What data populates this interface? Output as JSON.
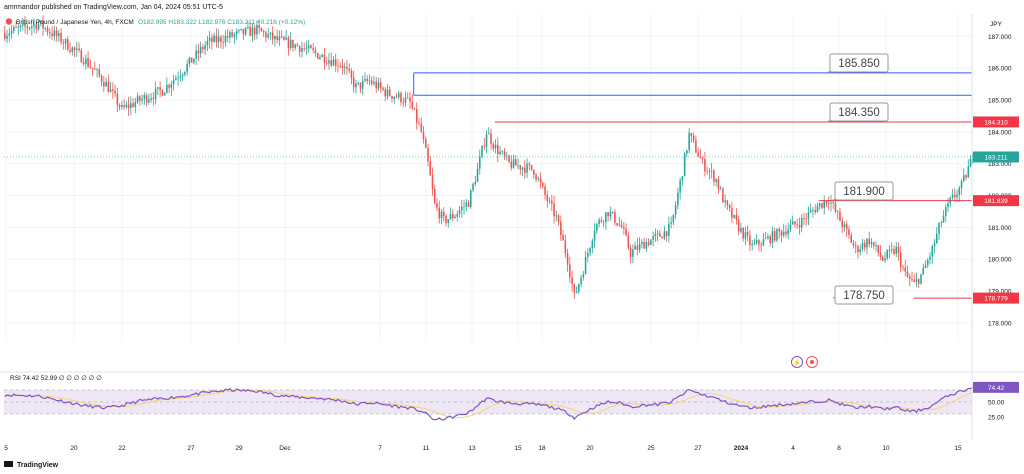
{
  "header": {
    "publisher": "amrmandor published on TradingView.com, Jan 04, 2024 05:51 UTC-5",
    "symbol": "British Pound / Japanese Yen, 4h, FXCM",
    "ohlc": "O182.995 H183.322 L182.976 C183.211 +0.216 (+0.12%)"
  },
  "footer": {
    "brand": "TradingView"
  },
  "colors": {
    "up": "#26a69a",
    "down": "#ef5350",
    "blue_line": "#2962ff",
    "red_line": "#f23645",
    "rsi": "#7e57c2",
    "rsi_band": "#ede7f6",
    "rsi_ma": "#f9d56e"
  },
  "chart_data": [
    {
      "type": "candlestick",
      "title": "British Pound / Japanese Yen, 4h, FXCM",
      "currency": "JPY",
      "ylim": [
        177.4,
        187.7
      ],
      "y_ticks": [
        178.0,
        179.0,
        180.0,
        181.0,
        182.0,
        183.0,
        184.0,
        185.0,
        186.0,
        187.0
      ],
      "x_ticks": [
        "5",
        "20",
        "22",
        "27",
        "29",
        "Dec",
        "7",
        "11",
        "13",
        "15",
        "18",
        "20",
        "25",
        "27",
        "2024",
        "4",
        "8",
        "10",
        "15"
      ],
      "last_price": 183.211,
      "waypoints": [
        [
          0,
          187.1
        ],
        [
          15,
          187.4
        ],
        [
          25,
          186.9
        ],
        [
          35,
          186.3
        ],
        [
          45,
          185.5
        ],
        [
          52,
          184.7
        ],
        [
          60,
          185.0
        ],
        [
          70,
          185.3
        ],
        [
          80,
          186.0
        ],
        [
          90,
          186.8
        ],
        [
          100,
          187.0
        ],
        [
          112,
          187.2
        ],
        [
          120,
          186.9
        ],
        [
          130,
          186.7
        ],
        [
          140,
          186.4
        ],
        [
          150,
          186.1
        ],
        [
          156,
          185.4
        ],
        [
          162,
          185.6
        ],
        [
          170,
          185.2
        ],
        [
          175,
          185.1
        ],
        [
          180,
          184.9
        ],
        [
          185,
          184.0
        ],
        [
          188,
          183.0
        ],
        [
          191,
          181.7
        ],
        [
          195,
          181.2
        ],
        [
          200,
          181.4
        ],
        [
          206,
          181.8
        ],
        [
          210,
          182.8
        ],
        [
          214,
          184.0
        ],
        [
          218,
          183.5
        ],
        [
          224,
          183.0
        ],
        [
          230,
          182.9
        ],
        [
          235,
          182.8
        ],
        [
          240,
          182.0
        ],
        [
          245,
          181.3
        ],
        [
          250,
          180.0
        ],
        [
          253,
          178.8
        ],
        [
          257,
          179.7
        ],
        [
          262,
          181.0
        ],
        [
          268,
          181.5
        ],
        [
          274,
          181.0
        ],
        [
          278,
          180.2
        ],
        [
          284,
          180.5
        ],
        [
          290,
          180.7
        ],
        [
          296,
          181.0
        ],
        [
          300,
          182.4
        ],
        [
          304,
          183.9
        ],
        [
          310,
          183.0
        ],
        [
          316,
          182.5
        ],
        [
          320,
          181.7
        ],
        [
          326,
          181.0
        ],
        [
          332,
          180.4
        ],
        [
          338,
          180.6
        ],
        [
          346,
          180.9
        ],
        [
          354,
          181.2
        ],
        [
          360,
          181.6
        ],
        [
          366,
          181.9
        ],
        [
          372,
          181.1
        ],
        [
          378,
          180.3
        ],
        [
          384,
          180.6
        ],
        [
          390,
          180.0
        ],
        [
          396,
          180.3
        ],
        [
          400,
          179.5
        ],
        [
          404,
          179.2
        ],
        [
          408,
          179.6
        ],
        [
          412,
          180.3
        ],
        [
          416,
          181.2
        ],
        [
          420,
          181.8
        ],
        [
          425,
          182.3
        ],
        [
          430,
          183.2
        ]
      ],
      "candles_count": 430,
      "levels": [
        {
          "price": 185.85,
          "label": "185.850",
          "color": "blue",
          "from_bar": 182
        },
        {
          "price": 185.15,
          "color": "blue",
          "from_bar": 182
        },
        {
          "price": 184.31,
          "label": "184.350",
          "tag": "184.310",
          "color": "red",
          "from_bar": 218
        },
        {
          "price": 181.839,
          "label": "181.900",
          "tag": "181.839",
          "color": "red",
          "from_bar": 362
        },
        {
          "price": 178.779,
          "label": "178.750",
          "tag": "178.779",
          "color": "red",
          "from_bar": 404
        }
      ]
    },
    {
      "type": "line",
      "title": "RSI",
      "legend": "RSI 74.42 52.99 ∅ ∅ ∅ ∅ ∅ ∅",
      "ylim": [
        0,
        100
      ],
      "y_ticks": [
        25.0,
        50.0,
        75.0
      ],
      "band": [
        30,
        70
      ],
      "last_value": 74.42,
      "ma_value": 52.99,
      "waypoints": [
        [
          0,
          62
        ],
        [
          15,
          60
        ],
        [
          25,
          52
        ],
        [
          35,
          44
        ],
        [
          45,
          40
        ],
        [
          52,
          44
        ],
        [
          60,
          52
        ],
        [
          70,
          56
        ],
        [
          80,
          60
        ],
        [
          90,
          66
        ],
        [
          100,
          70
        ],
        [
          112,
          68
        ],
        [
          120,
          62
        ],
        [
          130,
          58
        ],
        [
          140,
          56
        ],
        [
          150,
          52
        ],
        [
          156,
          46
        ],
        [
          162,
          49
        ],
        [
          170,
          45
        ],
        [
          175,
          42
        ],
        [
          180,
          40
        ],
        [
          185,
          35
        ],
        [
          188,
          28
        ],
        [
          191,
          20
        ],
        [
          195,
          22
        ],
        [
          200,
          26
        ],
        [
          206,
          32
        ],
        [
          210,
          44
        ],
        [
          214,
          56
        ],
        [
          218,
          52
        ],
        [
          224,
          48
        ],
        [
          230,
          47
        ],
        [
          235,
          46
        ],
        [
          240,
          44
        ],
        [
          245,
          39
        ],
        [
          250,
          32
        ],
        [
          253,
          24
        ],
        [
          257,
          32
        ],
        [
          262,
          42
        ],
        [
          268,
          50
        ],
        [
          274,
          48
        ],
        [
          278,
          42
        ],
        [
          284,
          45
        ],
        [
          290,
          46
        ],
        [
          296,
          50
        ],
        [
          300,
          60
        ],
        [
          304,
          70
        ],
        [
          310,
          62
        ],
        [
          316,
          56
        ],
        [
          320,
          50
        ],
        [
          326,
          44
        ],
        [
          332,
          40
        ],
        [
          338,
          43
        ],
        [
          346,
          46
        ],
        [
          354,
          48
        ],
        [
          360,
          51
        ],
        [
          366,
          53
        ],
        [
          372,
          46
        ],
        [
          378,
          40
        ],
        [
          384,
          43
        ],
        [
          390,
          38
        ],
        [
          396,
          41
        ],
        [
          400,
          36
        ],
        [
          404,
          34
        ],
        [
          408,
          38
        ],
        [
          412,
          44
        ],
        [
          416,
          54
        ],
        [
          420,
          62
        ],
        [
          425,
          68
        ],
        [
          430,
          74.4
        ]
      ]
    }
  ]
}
